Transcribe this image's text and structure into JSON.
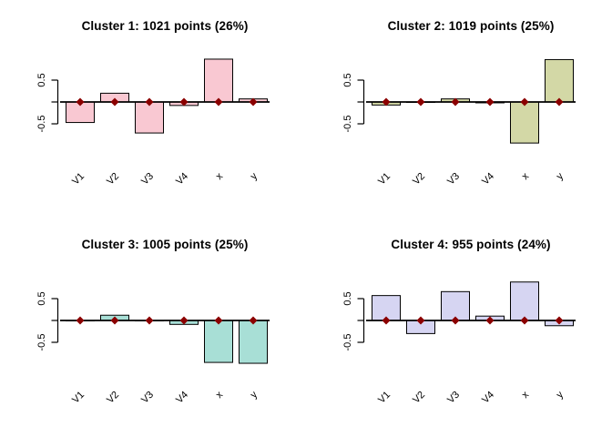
{
  "figure": {
    "background": "#ffffff",
    "kind": "cluster-profile-barplots",
    "grid": "2x2"
  },
  "chart_data": [
    {
      "type": "bar",
      "title": "Cluster 1: 1021 points (26%)",
      "categories": [
        "V1",
        "V2",
        "V3",
        "V4",
        "x",
        "y"
      ],
      "values": [
        -0.47,
        0.2,
        -0.71,
        -0.08,
        0.98,
        0.07
      ],
      "bar_color": "#F9C8D2",
      "bar_border": "#000000",
      "marker": {
        "shape": "diamond",
        "color": "#8B0000",
        "values": [
          0,
          0,
          0,
          0,
          0,
          0
        ]
      },
      "yticks": [
        {
          "value": 0.5,
          "label": "0.5"
        },
        {
          "value": -0.5,
          "label": "-0.5"
        }
      ],
      "ylim": [
        -1.2,
        1.2
      ],
      "zero_line": true,
      "xlabel": "",
      "ylabel": "",
      "grid_lines": false,
      "legend": null
    },
    {
      "type": "bar",
      "title": "Cluster 2: 1019 points (25%)",
      "categories": [
        "V1",
        "V2",
        "V3",
        "V4",
        "x",
        "y"
      ],
      "values": [
        -0.07,
        -0.01,
        0.07,
        -0.02,
        -0.94,
        0.97
      ],
      "bar_color": "#D3D8A6",
      "bar_border": "#000000",
      "marker": {
        "shape": "diamond",
        "color": "#8B0000",
        "values": [
          0,
          0,
          0,
          0,
          0,
          0
        ]
      },
      "yticks": [
        {
          "value": 0.5,
          "label": "0.5"
        },
        {
          "value": -0.5,
          "label": "-0.5"
        }
      ],
      "ylim": [
        -1.2,
        1.2
      ],
      "zero_line": true,
      "xlabel": "",
      "ylabel": "",
      "grid_lines": false,
      "legend": null
    },
    {
      "type": "bar",
      "title": "Cluster 3: 1005 points (25%)",
      "categories": [
        "V1",
        "V2",
        "V3",
        "V4",
        "x",
        "y"
      ],
      "values": [
        -0.01,
        0.12,
        -0.01,
        -0.09,
        -0.96,
        -0.98
      ],
      "bar_color": "#A8DFD6",
      "bar_border": "#000000",
      "marker": {
        "shape": "diamond",
        "color": "#8B0000",
        "values": [
          0,
          0,
          0,
          0,
          0,
          0
        ]
      },
      "yticks": [
        {
          "value": 0.5,
          "label": "0.5"
        },
        {
          "value": -0.5,
          "label": "-0.5"
        }
      ],
      "ylim": [
        -1.2,
        1.2
      ],
      "zero_line": true,
      "xlabel": "",
      "ylabel": "",
      "grid_lines": false,
      "legend": null
    },
    {
      "type": "bar",
      "title": "Cluster 4: 955 points (24%)",
      "categories": [
        "V1",
        "V2",
        "V3",
        "V4",
        "x",
        "y"
      ],
      "values": [
        0.57,
        -0.3,
        0.66,
        0.1,
        0.88,
        -0.12
      ],
      "bar_color": "#D6D5F2",
      "bar_border": "#000000",
      "marker": {
        "shape": "diamond",
        "color": "#8B0000",
        "values": [
          0,
          0,
          0,
          0,
          0,
          0
        ]
      },
      "yticks": [
        {
          "value": 0.5,
          "label": "0.5"
        },
        {
          "value": -0.5,
          "label": "-0.5"
        }
      ],
      "ylim": [
        -1.2,
        1.2
      ],
      "zero_line": true,
      "xlabel": "",
      "ylabel": "",
      "grid_lines": false,
      "legend": null
    }
  ]
}
